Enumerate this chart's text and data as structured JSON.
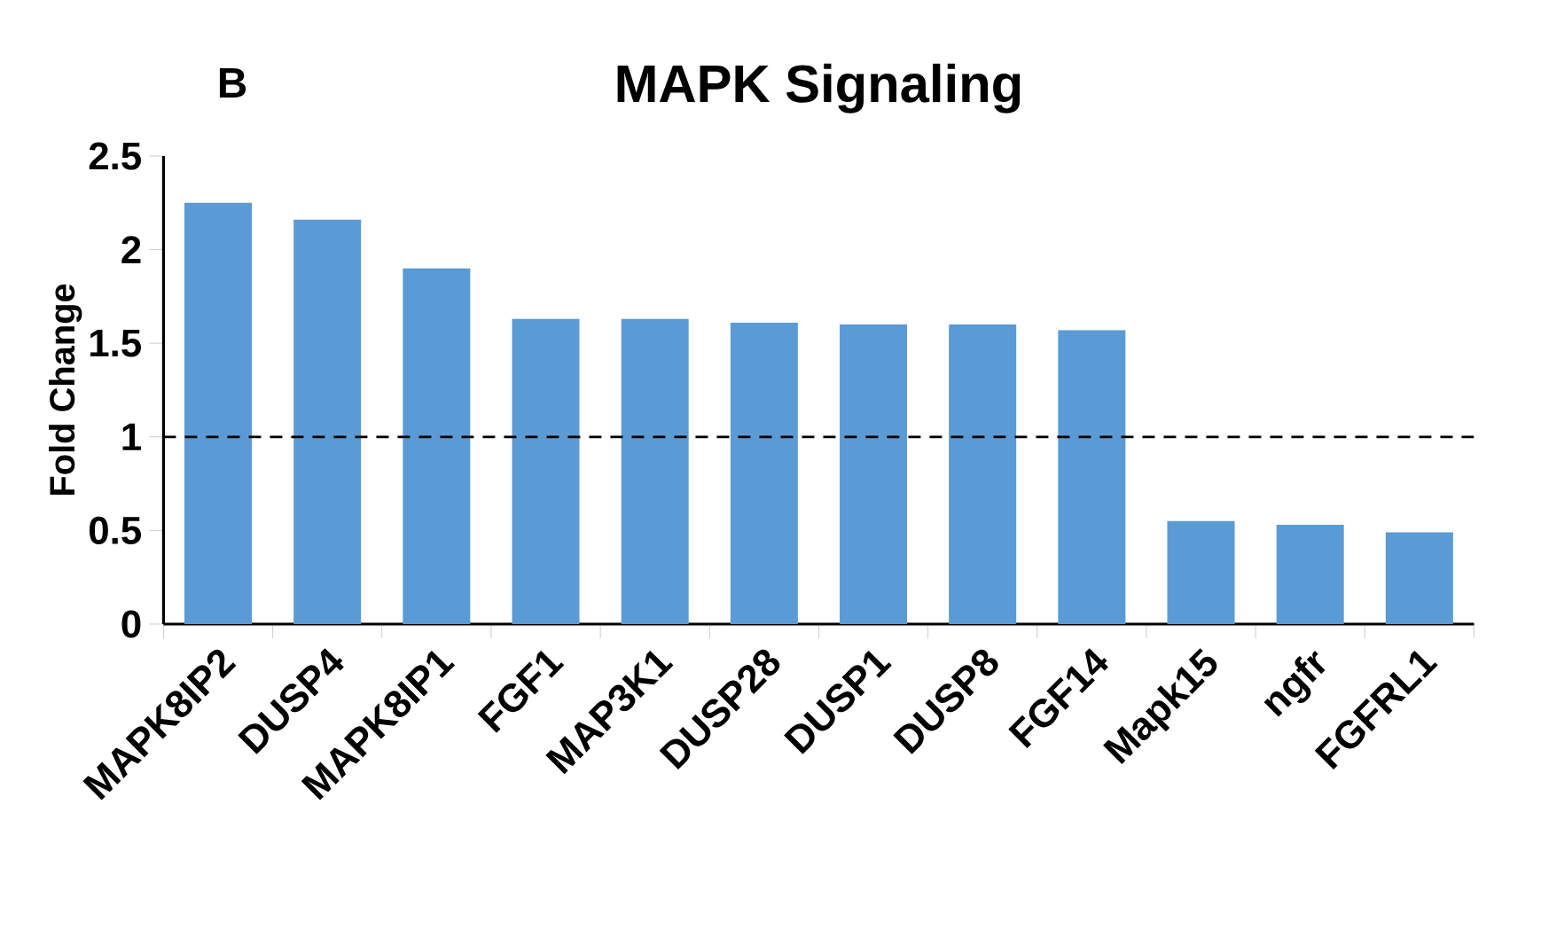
{
  "chart_data": {
    "type": "bar",
    "title": "MAPK Signaling",
    "ylabel": "Fold Change",
    "annotations": [
      "B"
    ],
    "categories": [
      "MAPK8IP2",
      "DUSP4",
      "MAPK8IP1",
      "FGF1",
      "MAP3K1",
      "DUSP28",
      "DUSP1",
      "DUSP8",
      "FGF14",
      "Mapk15",
      "ngfr",
      "FGFRL1"
    ],
    "values": [
      2.25,
      2.16,
      1.9,
      1.63,
      1.63,
      1.61,
      1.6,
      1.6,
      1.57,
      0.55,
      0.53,
      0.49
    ],
    "color": "#5b9bd5",
    "ylim": [
      0,
      2.5
    ],
    "yticks": [
      0,
      0.5,
      1,
      1.5,
      2,
      2.5
    ],
    "ref_lines": [
      {
        "axis": "y",
        "value": 1,
        "line_style": "dashed",
        "color": "#000000"
      }
    ],
    "grid": false
  }
}
